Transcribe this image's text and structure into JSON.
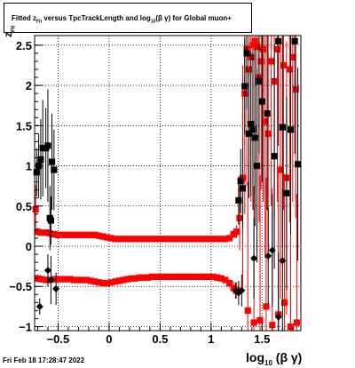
{
  "title": {
    "prefix": "Fitted  z",
    "sub": "Fit",
    "middle": "  versus TpcTrackLength and log",
    "sub2": "10",
    "suffix": "(β γ) for Global muon+"
  },
  "timestamp": "Fri Feb 18 17:28:47 2022",
  "xlabel": {
    "main": "log",
    "sub": "10",
    "tail": "(β γ)"
  },
  "ylabel": {
    "main": "z",
    "sub": "Fit"
  },
  "chart_data": {
    "type": "scatter",
    "xlim": [
      -0.73,
      1.88
    ],
    "ylim": [
      -1.05,
      2.62
    ],
    "grid": true,
    "xticks": [
      -0.5,
      0,
      0.5,
      1,
      1.5
    ],
    "xtick_labels": [
      "−0.5",
      "0",
      "0.5",
      "1",
      "1.5"
    ],
    "yticks": [
      -1,
      -0.5,
      0,
      0.5,
      1,
      1.5,
      2,
      2.5
    ],
    "ytick_labels": [
      "−1",
      "−0.5",
      "0",
      "0.5",
      "1",
      "1.5",
      "2",
      "2.5"
    ],
    "colors": {
      "red": "#ff0000",
      "black": "#000000",
      "grid": "#000000"
    },
    "series": [
      {
        "marker": "square",
        "color": "#ff0000",
        "points": [
          [
            -0.72,
            0.46,
            0.3
          ],
          [
            -0.7,
            0.18,
            0.05
          ],
          [
            -0.66,
            0.17,
            0.03
          ],
          [
            -0.62,
            0.17,
            0.02
          ],
          [
            -0.58,
            0.16,
            0.02
          ],
          [
            -0.54,
            0.15,
            0.01
          ],
          [
            -0.5,
            0.14,
            0.01
          ],
          [
            -0.46,
            0.14,
            0.01
          ],
          [
            -0.42,
            0.14,
            0.01
          ],
          [
            -0.38,
            0.14,
            0.01
          ],
          [
            -0.34,
            0.14,
            0.01
          ],
          [
            -0.3,
            0.14,
            0.01
          ],
          [
            -0.26,
            0.14,
            0.01
          ],
          [
            -0.22,
            0.14,
            0.01
          ],
          [
            -0.18,
            0.14,
            0.01
          ],
          [
            -0.14,
            0.14,
            0.01
          ],
          [
            -0.1,
            0.13,
            0.01
          ],
          [
            -0.06,
            0.12,
            0.01
          ],
          [
            -0.02,
            0.11,
            0.01
          ],
          [
            0.02,
            0.1,
            0.01
          ],
          [
            0.06,
            0.09,
            0.01
          ],
          [
            0.1,
            0.09,
            0.01
          ],
          [
            0.14,
            0.09,
            0.01
          ],
          [
            0.18,
            0.09,
            0.01
          ],
          [
            0.22,
            0.09,
            0.01
          ],
          [
            0.26,
            0.09,
            0.01
          ],
          [
            0.3,
            0.09,
            0.01
          ],
          [
            0.34,
            0.09,
            0.01
          ],
          [
            0.38,
            0.09,
            0.01
          ],
          [
            0.42,
            0.09,
            0.01
          ],
          [
            0.46,
            0.09,
            0.01
          ],
          [
            0.5,
            0.09,
            0.01
          ],
          [
            0.54,
            0.09,
            0.01
          ],
          [
            0.58,
            0.09,
            0.01
          ],
          [
            0.62,
            0.09,
            0.01
          ],
          [
            0.66,
            0.09,
            0.01
          ],
          [
            0.7,
            0.09,
            0.01
          ],
          [
            0.74,
            0.09,
            0.01
          ],
          [
            0.78,
            0.09,
            0.01
          ],
          [
            0.82,
            0.09,
            0.01
          ],
          [
            0.86,
            0.09,
            0.01
          ],
          [
            0.9,
            0.09,
            0.01
          ],
          [
            0.94,
            0.09,
            0.01
          ],
          [
            0.98,
            0.09,
            0.01
          ],
          [
            1.02,
            0.09,
            0.01
          ],
          [
            1.06,
            0.09,
            0.01
          ],
          [
            1.1,
            0.09,
            0.01
          ],
          [
            1.14,
            0.09,
            0.01
          ],
          [
            1.18,
            0.1,
            0.02
          ],
          [
            1.22,
            0.15,
            0.05
          ],
          [
            1.25,
            0.18,
            0.08
          ],
          [
            1.28,
            0.35,
            0.4
          ],
          [
            1.31,
            0.85,
            1.4
          ],
          [
            1.33,
            1.9,
            1.5
          ],
          [
            1.35,
            2.45,
            1.7
          ],
          [
            1.37,
            2.2,
            1.6
          ],
          [
            1.39,
            2.35,
            1.8
          ],
          [
            1.41,
            2.5,
            1.6
          ],
          [
            1.43,
            2.55,
            1.9
          ],
          [
            1.45,
            2.48,
            1.7
          ],
          [
            1.47,
            2.1,
            1.8
          ],
          [
            1.49,
            2.3,
            1.6
          ],
          [
            1.51,
            2.45,
            1.9
          ],
          [
            1.53,
            1.55,
            1.7
          ],
          [
            1.56,
            1.4,
            1.6
          ],
          [
            1.59,
            2.3,
            1.8
          ],
          [
            1.62,
            2.05,
            1.7
          ],
          [
            1.65,
            2.45,
            1.9
          ],
          [
            1.68,
            0.95,
            1.6
          ],
          [
            1.71,
            2.25,
            1.8
          ],
          [
            1.74,
            0.85,
            1.7
          ],
          [
            1.77,
            2.2,
            1.9
          ],
          [
            1.8,
            2.35,
            1.8
          ],
          [
            1.83,
            1.95,
            1.6
          ]
        ]
      },
      {
        "marker": "square",
        "color": "#ff0000",
        "points": [
          [
            -0.7,
            -0.4,
            0.05
          ],
          [
            -0.66,
            -0.41,
            0.03
          ],
          [
            -0.62,
            -0.42,
            0.02
          ],
          [
            -0.58,
            -0.42,
            0.02
          ],
          [
            -0.54,
            -0.41,
            0.02
          ],
          [
            -0.5,
            -0.41,
            0.02
          ],
          [
            -0.46,
            -0.41,
            0.02
          ],
          [
            -0.42,
            -0.41,
            0.02
          ],
          [
            -0.38,
            -0.41,
            0.02
          ],
          [
            -0.34,
            -0.42,
            0.02
          ],
          [
            -0.3,
            -0.42,
            0.02
          ],
          [
            -0.26,
            -0.42,
            0.02
          ],
          [
            -0.22,
            -0.42,
            0.02
          ],
          [
            -0.18,
            -0.43,
            0.02
          ],
          [
            -0.14,
            -0.44,
            0.02
          ],
          [
            -0.1,
            -0.45,
            0.02
          ],
          [
            -0.06,
            -0.46,
            0.02
          ],
          [
            -0.02,
            -0.46,
            0.02
          ],
          [
            0.02,
            -0.45,
            0.02
          ],
          [
            0.06,
            -0.44,
            0.02
          ],
          [
            0.1,
            -0.43,
            0.02
          ],
          [
            0.14,
            -0.42,
            0.02
          ],
          [
            0.18,
            -0.41,
            0.02
          ],
          [
            0.22,
            -0.4,
            0.02
          ],
          [
            0.26,
            -0.4,
            0.02
          ],
          [
            0.3,
            -0.39,
            0.02
          ],
          [
            0.34,
            -0.39,
            0.02
          ],
          [
            0.38,
            -0.39,
            0.02
          ],
          [
            0.42,
            -0.38,
            0.02
          ],
          [
            0.46,
            -0.38,
            0.02
          ],
          [
            0.5,
            -0.38,
            0.02
          ],
          [
            0.54,
            -0.38,
            0.02
          ],
          [
            0.58,
            -0.38,
            0.02
          ],
          [
            0.62,
            -0.38,
            0.02
          ],
          [
            0.66,
            -0.38,
            0.02
          ],
          [
            0.7,
            -0.38,
            0.02
          ],
          [
            0.74,
            -0.38,
            0.02
          ],
          [
            0.78,
            -0.38,
            0.02
          ],
          [
            0.82,
            -0.38,
            0.02
          ],
          [
            0.86,
            -0.38,
            0.02
          ],
          [
            0.9,
            -0.38,
            0.02
          ],
          [
            0.94,
            -0.38,
            0.02
          ],
          [
            0.98,
            -0.38,
            0.02
          ],
          [
            1.02,
            -0.38,
            0.02
          ],
          [
            1.06,
            -0.39,
            0.02
          ],
          [
            1.1,
            -0.4,
            0.02
          ],
          [
            1.14,
            -0.42,
            0.03
          ],
          [
            1.18,
            -0.46,
            0.05
          ],
          [
            1.22,
            -0.52,
            0.08
          ],
          [
            1.25,
            -0.55,
            0.1
          ],
          [
            1.36,
            -0.8,
            1.6
          ],
          [
            1.42,
            -0.95,
            1.7
          ],
          [
            1.48,
            -0.92,
            1.8
          ],
          [
            1.54,
            -0.75,
            1.6
          ],
          [
            1.6,
            -0.98,
            1.7
          ],
          [
            1.66,
            -0.85,
            1.8
          ],
          [
            1.72,
            -0.7,
            1.6
          ],
          [
            1.78,
            -1.0,
            1.7
          ],
          [
            1.84,
            -0.95,
            1.6
          ]
        ]
      },
      {
        "marker": "square",
        "color": "#000000",
        "points": [
          [
            -0.71,
            0.92,
            0.3
          ],
          [
            -0.69,
            1.0,
            0.4
          ],
          [
            -0.67,
            1.08,
            0.5
          ],
          [
            -0.65,
            1.22,
            0.6
          ],
          [
            -0.62,
            1.22,
            0.5
          ],
          [
            -0.6,
            1.25,
            0.7
          ],
          [
            -0.58,
            0.35,
            0.4
          ],
          [
            -0.56,
            1.05,
            0.6
          ],
          [
            -0.54,
            0.95,
            0.5
          ],
          [
            -0.57,
            0.32,
            0.3
          ],
          [
            1.27,
            0.57,
            0.3
          ],
          [
            1.29,
            0.81,
            0.4
          ],
          [
            1.31,
            0.72,
            0.5
          ],
          [
            1.33,
            1.99,
            0.6
          ],
          [
            1.35,
            2.4,
            0.7
          ],
          [
            1.37,
            1.4,
            0.8
          ],
          [
            1.39,
            1.52,
            0.9
          ],
          [
            1.41,
            1.45,
            1.0
          ],
          [
            1.43,
            1.35,
            1.1
          ],
          [
            1.45,
            1.0,
            1.2
          ],
          [
            1.47,
            2.05,
            0.9
          ],
          [
            1.5,
            1.8,
            1.0
          ],
          [
            1.55,
            1.65,
            1.2
          ],
          [
            1.62,
            1.12,
            1.4
          ],
          [
            1.66,
            2.55,
            1.3
          ],
          [
            1.7,
            1.48,
            1.5
          ],
          [
            1.74,
            0.66,
            1.2
          ],
          [
            1.78,
            1.45,
            1.3
          ],
          [
            1.82,
            2.55,
            1.4
          ],
          [
            1.85,
            1.02,
            1.2
          ]
        ]
      },
      {
        "marker": "diamond",
        "color": "#000000",
        "points": [
          [
            -0.68,
            -0.75,
            0.1
          ],
          [
            -0.6,
            -0.3,
            0.2
          ],
          [
            -0.57,
            -0.42,
            0.3
          ],
          [
            -0.52,
            -0.53,
            0.2
          ],
          [
            1.24,
            -0.55,
            0.1
          ],
          [
            1.27,
            -0.58,
            0.15
          ],
          [
            1.3,
            -0.55,
            0.2
          ],
          [
            1.42,
            -0.15,
            0.5
          ],
          [
            1.56,
            -0.12,
            0.6
          ],
          [
            1.6,
            -0.05,
            0.7
          ],
          [
            1.66,
            -0.88,
            0.8
          ],
          [
            1.7,
            -0.18,
            0.9
          ]
        ]
      }
    ]
  }
}
